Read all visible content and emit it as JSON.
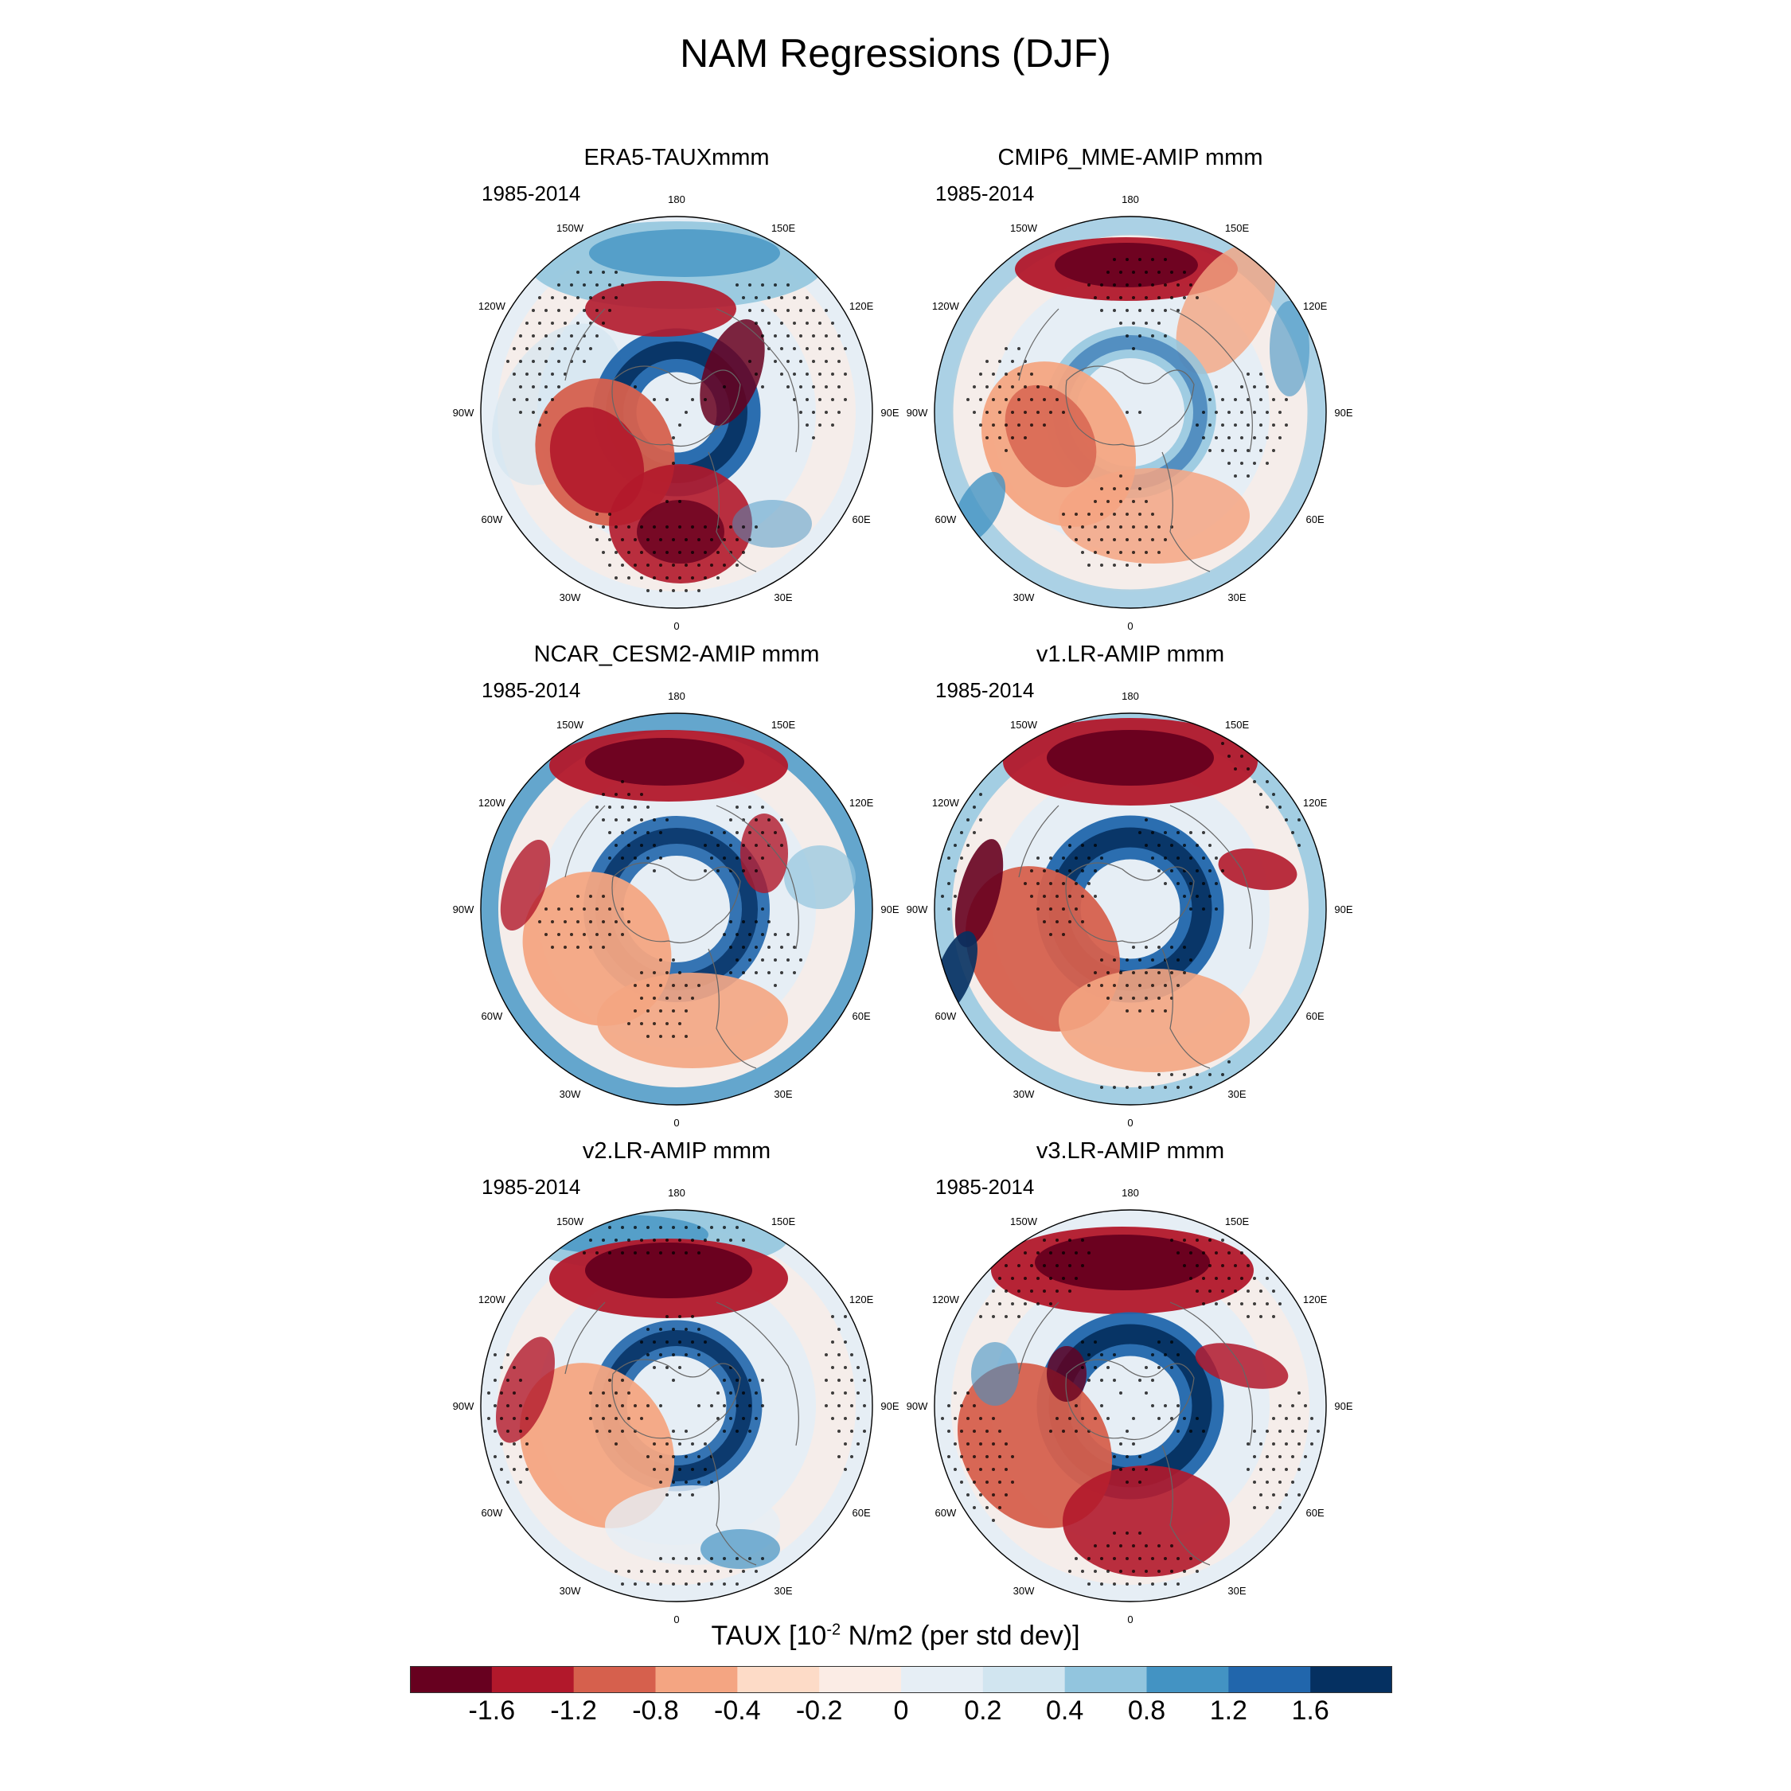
{
  "title": "NAM Regressions (DJF)",
  "period": "1985-2014",
  "lon_labels": [
    "180",
    "150E",
    "120E",
    "90E",
    "60E",
    "30E",
    "0",
    "30W",
    "60W",
    "90W",
    "120W",
    "150W"
  ],
  "panels": [
    {
      "title": "ERA5-TAUXmmm",
      "period": "1985-2014"
    },
    {
      "title": "CMIP6_MME-AMIP  mmm",
      "period": "1985-2014"
    },
    {
      "title": "NCAR_CESM2-AMIP  mmm",
      "period": "1985-2014"
    },
    {
      "title": "v1.LR-AMIP  mmm",
      "period": "1985-2014"
    },
    {
      "title": "v2.LR-AMIP  mmm",
      "period": "1985-2014"
    },
    {
      "title": "v3.LR-AMIP  mmm",
      "period": "1985-2014"
    }
  ],
  "colorbar": {
    "title_prefix": "TAUX [10",
    "title_exp": "-2",
    "title_suffix": " N/m2 (per std dev)]",
    "labels": [
      "-1.6",
      "-1.2",
      "-0.8",
      "-0.4",
      "-0.2",
      "0",
      "0.2",
      "0.4",
      "0.8",
      "1.2",
      "1.6"
    ],
    "colors": [
      "#67001f",
      "#b2182b",
      "#d6604d",
      "#f4a582",
      "#fddbc7",
      "#fbece5",
      "#e6eef5",
      "#d1e5f0",
      "#92c5de",
      "#4393c3",
      "#2166ac",
      "#053061"
    ]
  }
}
